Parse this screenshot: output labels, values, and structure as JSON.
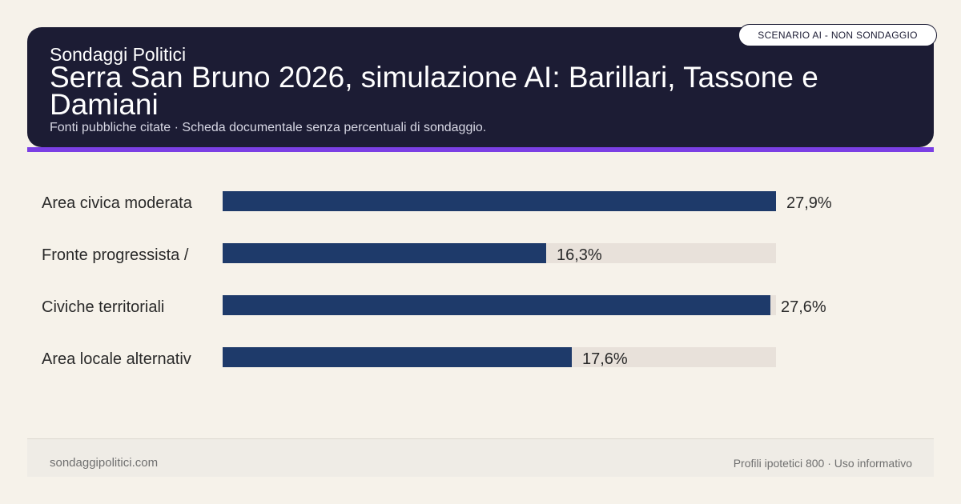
{
  "header": {
    "kicker": "Sondaggi Politici",
    "title": "Serra San Bruno 2026, simulazione AI: Barillari, Tassone e Damiani",
    "subtitle": "Fonti pubbliche citate · Scheda documentale senza percentuali di sondaggio.",
    "badge": "SCENARIO AI - NON SONDAGGIO"
  },
  "chart_data": {
    "type": "bar",
    "orientation": "horizontal",
    "categories": [
      "Area civica moderata",
      "Fronte progressista /",
      "Civiche territoriali",
      "Area locale alternativ"
    ],
    "values": [
      27.9,
      16.3,
      27.6,
      17.6
    ],
    "value_labels": [
      "27,9%",
      "16,3%",
      "27,6%",
      "17,6%"
    ],
    "xlim": [
      0,
      27.9
    ],
    "grid": false,
    "bar_color": "#1e3a6a",
    "track_color": "#e8e1da"
  },
  "footer": {
    "left": "sondaggipolitici.com",
    "right": "Profili ipotetici 800 · Uso informativo"
  },
  "colors": {
    "header_bg": "#1c1c34",
    "accent": "#7b3fe4",
    "background": "#f6f2ea"
  }
}
